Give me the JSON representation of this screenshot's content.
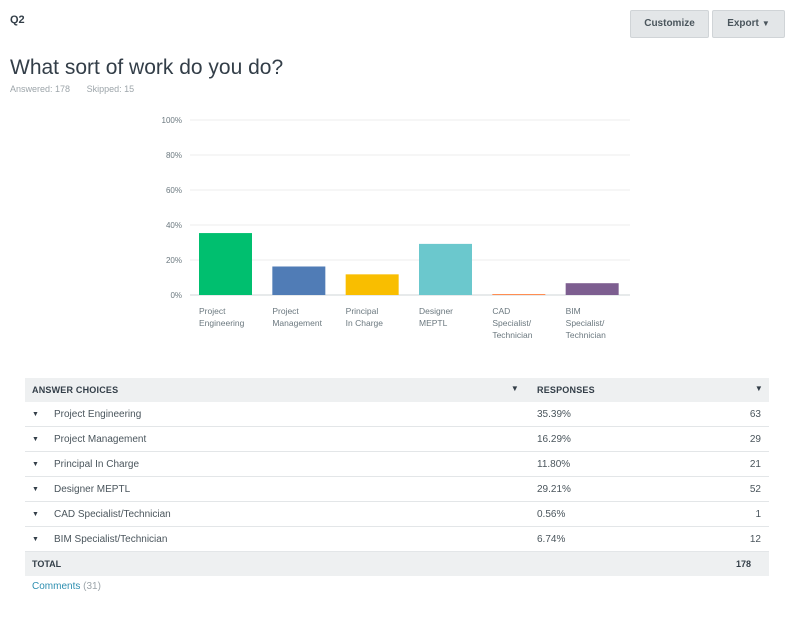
{
  "header": {
    "question_number": "Q2",
    "question_title": "What sort of work do you do?",
    "answered": "Answered: 178",
    "skipped": "Skipped: 15",
    "customize_label": "Customize",
    "export_label": "Export"
  },
  "colors": {
    "bars": [
      "#00bf6f",
      "#507cb6",
      "#f9be00",
      "#6bc8cd",
      "#ff8b4f",
      "#7d5e90"
    ],
    "grid": "#eeeeee",
    "text": "#333e48"
  },
  "chart_data": {
    "type": "bar",
    "categories": [
      [
        "Project",
        "Engineering"
      ],
      [
        "Project",
        "Management"
      ],
      [
        "Principal",
        "In Charge"
      ],
      [
        "Designer",
        "MEPTL"
      ],
      [
        "CAD",
        "Specialist/",
        "Technician"
      ],
      [
        "BIM",
        "Specialist/",
        "Technician"
      ]
    ],
    "values": [
      35.39,
      16.29,
      11.8,
      29.21,
      0.56,
      6.74
    ],
    "ylim": [
      0,
      100
    ],
    "yticks": [
      "0%",
      "20%",
      "40%",
      "60%",
      "80%",
      "100%"
    ],
    "grid": true,
    "legend": "none"
  },
  "table": {
    "col_choice": "ANSWER CHOICES",
    "col_responses": "RESPONSES",
    "rows": [
      {
        "label": "Project Engineering",
        "pct": "35.39%",
        "count": "63"
      },
      {
        "label": "Project Management",
        "pct": "16.29%",
        "count": "29"
      },
      {
        "label": "Principal In Charge",
        "pct": "11.80%",
        "count": "21"
      },
      {
        "label": "Designer MEPTL",
        "pct": "29.21%",
        "count": "52"
      },
      {
        "label": "CAD Specialist/Technician",
        "pct": "0.56%",
        "count": "1"
      },
      {
        "label": "BIM Specialist/Technician",
        "pct": "6.74%",
        "count": "12"
      }
    ],
    "total_label": "TOTAL",
    "total_count": "178"
  },
  "footer": {
    "comments_label": "Comments",
    "comments_count": "(31)"
  }
}
